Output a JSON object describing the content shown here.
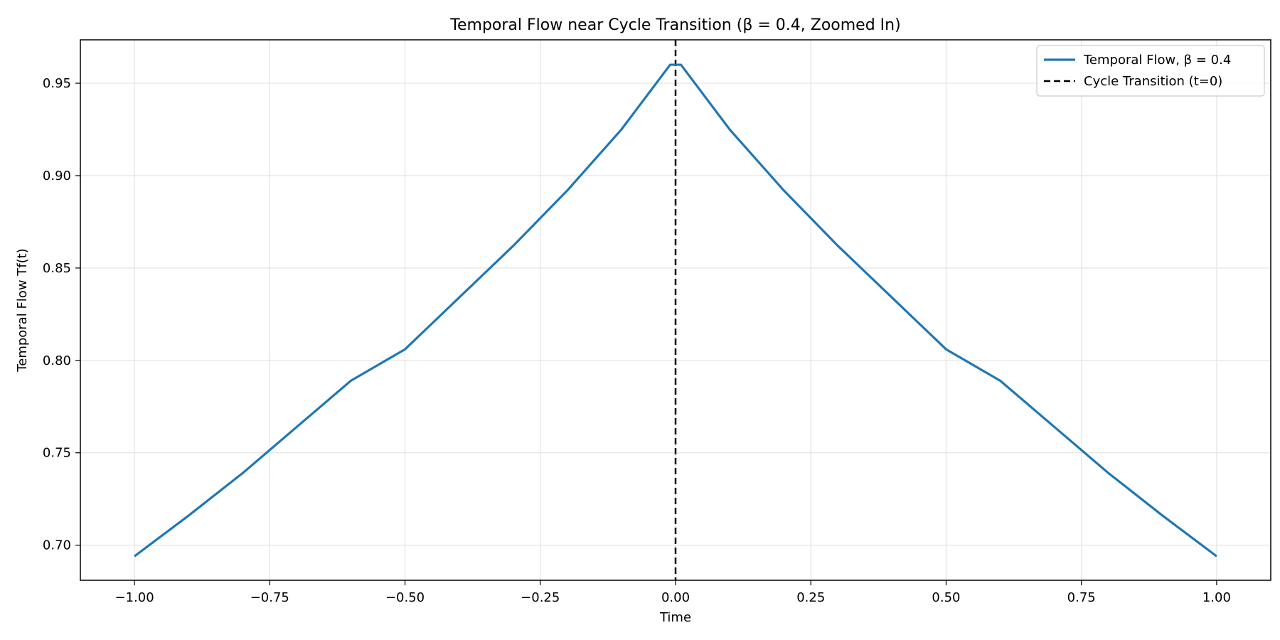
{
  "chart_data": {
    "type": "line",
    "title": "Temporal Flow near Cycle Transition (β = 0.4, Zoomed In)",
    "xlabel": "Time",
    "ylabel": "Temporal Flow Tf(t)",
    "xlim": [
      -1.1,
      1.1
    ],
    "ylim": [
      0.681,
      0.9735
    ],
    "xticks": [
      -1.0,
      -0.75,
      -0.5,
      -0.25,
      0.0,
      0.25,
      0.5,
      0.75,
      1.0
    ],
    "xtick_labels": [
      "−1.00",
      "−0.75",
      "−0.50",
      "−0.25",
      "0.00",
      "0.25",
      "0.50",
      "0.75",
      "1.00"
    ],
    "yticks": [
      0.7,
      0.75,
      0.8,
      0.85,
      0.9,
      0.95
    ],
    "ytick_labels": [
      "0.70",
      "0.75",
      "0.80",
      "0.85",
      "0.90",
      "0.95"
    ],
    "grid": true,
    "legend_position": "top-right",
    "series": [
      {
        "name": "Temporal Flow, β = 0.4",
        "color": "#1f77b4",
        "style": "solid",
        "x": [
          -1.0,
          -0.9,
          -0.8,
          -0.7,
          -0.6,
          -0.5,
          -0.4,
          -0.3,
          -0.2,
          -0.1,
          -0.01,
          0.01,
          0.1,
          0.2,
          0.3,
          0.4,
          0.5,
          0.6,
          0.7,
          0.8,
          0.9,
          1.0
        ],
        "y": [
          0.694,
          0.716,
          0.739,
          0.764,
          0.789,
          0.806,
          0.834,
          0.862,
          0.892,
          0.925,
          0.96,
          0.96,
          0.925,
          0.892,
          0.862,
          0.834,
          0.806,
          0.789,
          0.764,
          0.739,
          0.716,
          0.694
        ]
      },
      {
        "name": "Cycle Transition (t=0)",
        "color": "#000000",
        "style": "dashed",
        "vline_x": 0.0
      }
    ]
  }
}
